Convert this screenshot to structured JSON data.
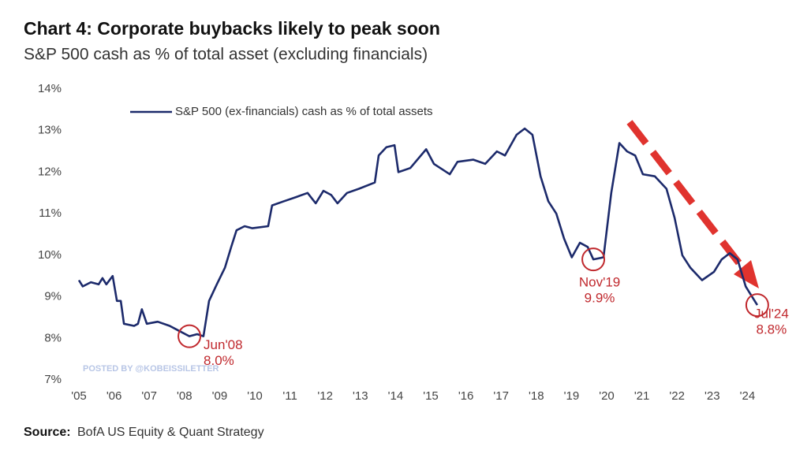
{
  "chart_data": {
    "type": "line",
    "title": "Chart 4: Corporate buybacks likely to peak soon",
    "subtitle": "S&P 500 cash as % of total asset (excluding financials)",
    "series": [
      {
        "name": "S&P 500 (ex-financials) cash as % of total assets",
        "color": "#1c2a6b",
        "x": [
          2005.0,
          2005.11,
          2005.34,
          2005.56,
          2005.67,
          2005.78,
          2005.96,
          2006.08,
          2006.19,
          2006.28,
          2006.57,
          2006.68,
          2006.79,
          2006.93,
          2007.24,
          2007.58,
          2007.8,
          2008.14,
          2008.36,
          2008.54,
          2008.7,
          2008.92,
          2009.15,
          2009.33,
          2009.48,
          2009.71,
          2009.93,
          2010.38,
          2010.49,
          2010.83,
          2011.17,
          2011.5,
          2011.73,
          2011.95,
          2012.17,
          2012.35,
          2012.62,
          2012.96,
          2013.41,
          2013.52,
          2013.74,
          2013.97,
          2014.08,
          2014.42,
          2014.87,
          2015.09,
          2015.54,
          2015.76,
          2016.21,
          2016.55,
          2016.88,
          2017.11,
          2017.44,
          2017.67,
          2017.89,
          2018.12,
          2018.34,
          2018.57,
          2018.79,
          2019.01,
          2019.24,
          2019.46,
          2019.62,
          2019.91,
          2020.13,
          2020.36,
          2020.58,
          2020.81,
          2021.03,
          2021.37,
          2021.7,
          2021.93,
          2022.15,
          2022.38,
          2022.71,
          2023.05,
          2023.27,
          2023.5,
          2023.72,
          2023.95,
          2024.28
        ],
        "values": [
          9.4,
          9.25,
          9.35,
          9.3,
          9.45,
          9.3,
          9.5,
          8.9,
          8.9,
          8.35,
          8.3,
          8.35,
          8.7,
          8.35,
          8.4,
          8.3,
          8.2,
          8.05,
          8.1,
          8.05,
          8.9,
          9.3,
          9.7,
          10.2,
          10.6,
          10.7,
          10.65,
          10.7,
          11.2,
          11.3,
          11.4,
          11.5,
          11.25,
          11.55,
          11.45,
          11.25,
          11.5,
          11.6,
          11.75,
          12.4,
          12.6,
          12.65,
          12.0,
          12.1,
          12.55,
          12.2,
          11.95,
          12.25,
          12.3,
          12.2,
          12.5,
          12.4,
          12.9,
          13.05,
          12.9,
          11.9,
          11.3,
          11.0,
          10.4,
          9.95,
          10.3,
          10.2,
          9.9,
          9.95,
          11.5,
          12.7,
          12.5,
          12.4,
          11.95,
          11.9,
          11.6,
          10.9,
          10.0,
          9.7,
          9.4,
          9.6,
          9.9,
          10.05,
          9.9,
          9.25,
          8.8
        ]
      }
    ],
    "annotations": [
      {
        "label": "Jun'08",
        "value_label": "8.0%",
        "x": 2008.14,
        "y": 8.05
      },
      {
        "label": "Nov'19",
        "value_label": "9.9%",
        "x": 2019.62,
        "y": 9.9
      },
      {
        "label": "Jul'24",
        "value_label": "8.8%",
        "x": 2024.28,
        "y": 8.8
      }
    ],
    "xlim": [
      2005,
      2025
    ],
    "xticks": [
      {
        "value": 2005,
        "label": "'05"
      },
      {
        "value": 2006,
        "label": "'06"
      },
      {
        "value": 2007,
        "label": "'07"
      },
      {
        "value": 2008,
        "label": "'08"
      },
      {
        "value": 2009,
        "label": "'09"
      },
      {
        "value": 2010,
        "label": "'10"
      },
      {
        "value": 2011,
        "label": "'11"
      },
      {
        "value": 2012,
        "label": "'12"
      },
      {
        "value": 2013,
        "label": "'13"
      },
      {
        "value": 2014,
        "label": "'14"
      },
      {
        "value": 2015,
        "label": "'15"
      },
      {
        "value": 2016,
        "label": "'16"
      },
      {
        "value": 2017,
        "label": "'17"
      },
      {
        "value": 2018,
        "label": "'18"
      },
      {
        "value": 2019,
        "label": "'19"
      },
      {
        "value": 2020,
        "label": "'20"
      },
      {
        "value": 2021,
        "label": "'21"
      },
      {
        "value": 2022,
        "label": "'22"
      },
      {
        "value": 2023,
        "label": "'23"
      },
      {
        "value": 2024,
        "label": "'24"
      }
    ],
    "ylim": [
      7,
      14
    ],
    "yticks": [
      {
        "value": 7,
        "label": "7%"
      },
      {
        "value": 8,
        "label": "8%"
      },
      {
        "value": 9,
        "label": "9%"
      },
      {
        "value": 10,
        "label": "10%"
      },
      {
        "value": 11,
        "label": "11%"
      },
      {
        "value": 12,
        "label": "12%"
      },
      {
        "value": 13,
        "label": "13%"
      },
      {
        "value": 14,
        "label": "14%"
      }
    ],
    "grid": false,
    "legend": "top-left",
    "annotation_color": "#c0282d",
    "watermark": "POSTED BY @KOBEISSILETTER",
    "source_label": "Source:",
    "source": "BofA US Equity & Quant Strategy"
  }
}
